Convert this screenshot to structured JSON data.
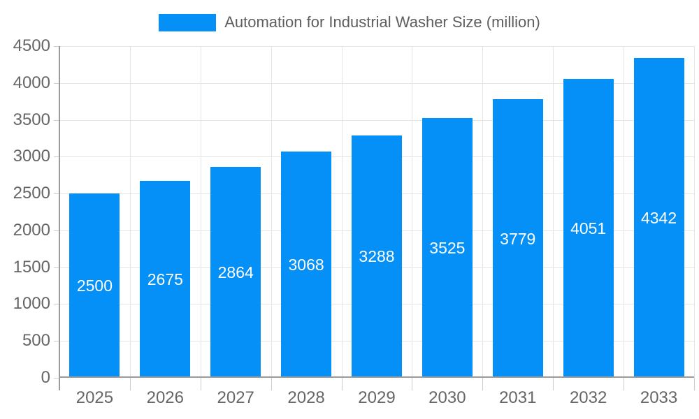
{
  "legend": {
    "label": "Automation for Industrial Washer Size (million)"
  },
  "chart_data": {
    "type": "bar",
    "title": "Automation for Industrial Washer Size (million)",
    "categories": [
      "2025",
      "2026",
      "2027",
      "2028",
      "2029",
      "2030",
      "2031",
      "2032",
      "2033"
    ],
    "values": [
      2500,
      2675,
      2864,
      3068,
      3288,
      3525,
      3779,
      4051,
      4342
    ],
    "xlabel": "",
    "ylabel": "",
    "ylim": [
      0,
      4500
    ],
    "yticks": [
      0,
      500,
      1000,
      1500,
      2000,
      2500,
      3000,
      3500,
      4000,
      4500
    ],
    "grid": true,
    "legend_position": "top",
    "bar_color": "#0590f7",
    "value_label_color": "#ffffff",
    "gridline_color": "#e4e4e4",
    "axis_color": "#9b9b9b",
    "tick_color": "#cccccc",
    "tick_label_color": "#666666",
    "legend_text_color": "#5e5e5e",
    "background_color": "#ffffff"
  }
}
